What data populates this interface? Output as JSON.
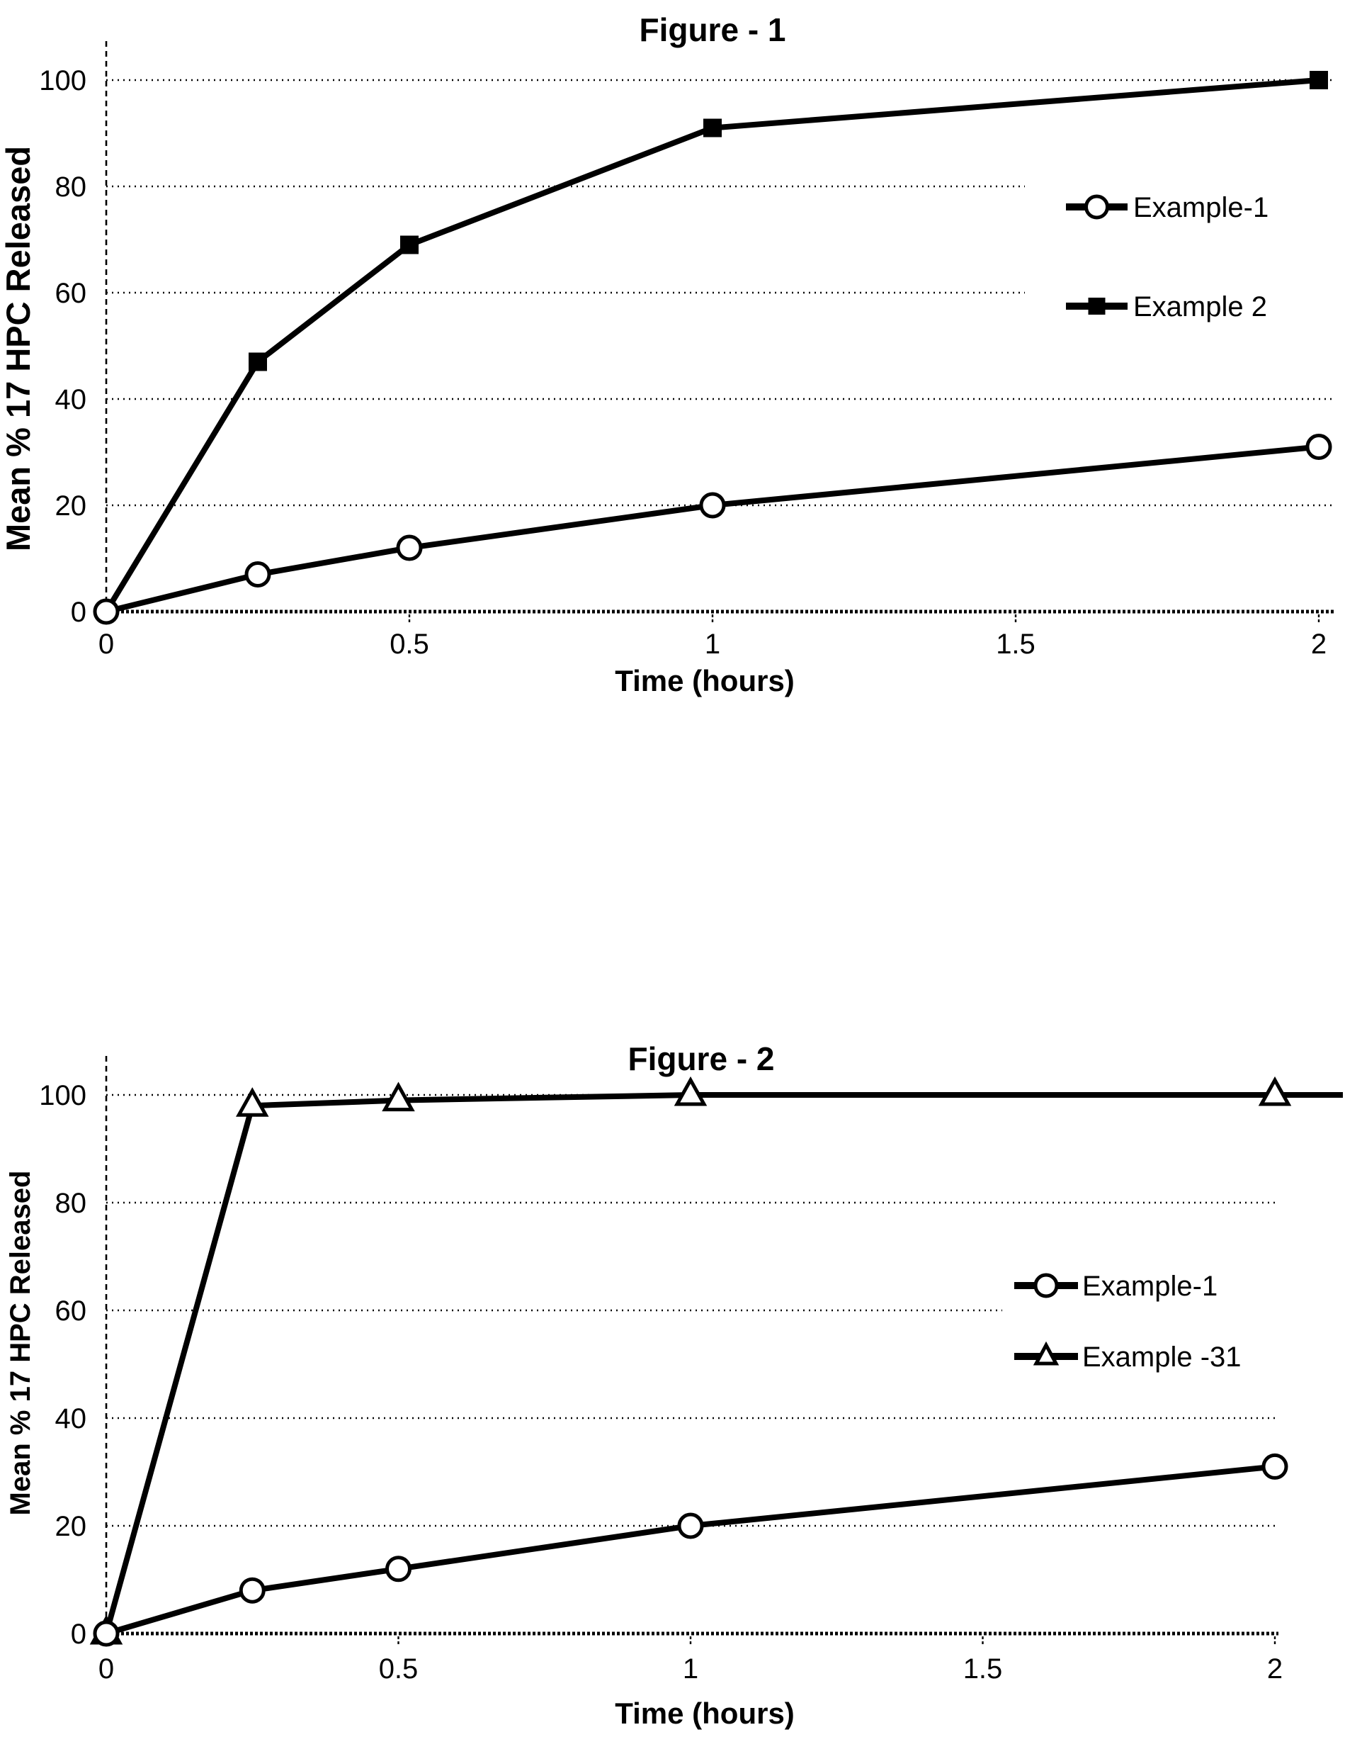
{
  "page": {
    "background": "#ffffff",
    "ink": "#000000"
  },
  "chart_data": [
    {
      "type": "line",
      "title": "Figure - 1",
      "xlabel": "Time (hours)",
      "ylabel": "Mean % 17 HPC Released",
      "x": [
        0,
        0.25,
        0.5,
        1,
        2
      ],
      "xlim": [
        0,
        2
      ],
      "ylim": [
        0,
        100
      ],
      "xticks": [
        0,
        0.5,
        1,
        1.5,
        2
      ],
      "xtick_labels": [
        "0",
        "0.5",
        "1",
        "1.5",
        "2"
      ],
      "yticks": [
        0,
        20,
        40,
        60,
        80,
        100
      ],
      "ytick_labels": [
        "0",
        "20",
        "40",
        "60",
        "80",
        "100"
      ],
      "grid": "horizontal-dotted",
      "legend_position": "inside-right",
      "series": [
        {
          "name": "Example-1",
          "marker": "circle",
          "marker_fill": "open",
          "values": [
            0,
            7,
            12,
            20,
            31
          ]
        },
        {
          "name": "Example 2",
          "marker": "square",
          "marker_fill": "solid",
          "values": [
            0,
            47,
            69,
            91,
            100
          ]
        }
      ]
    },
    {
      "type": "line",
      "title": "Figure - 2",
      "xlabel": "Time (hours)",
      "ylabel": "Mean % 17 HPC Released",
      "x": [
        0,
        0.25,
        0.5,
        1,
        2
      ],
      "xlim": [
        0,
        2
      ],
      "ylim": [
        0,
        100
      ],
      "xticks": [
        0,
        0.5,
        1,
        1.5,
        2
      ],
      "xtick_labels": [
        "0",
        "0.5",
        "1",
        "1.5",
        "2"
      ],
      "yticks": [
        0,
        20,
        40,
        60,
        80,
        100
      ],
      "ytick_labels": [
        "0",
        "20",
        "40",
        "60",
        "80",
        "100"
      ],
      "grid": "horizontal-dotted",
      "legend_position": "inside-right",
      "series": [
        {
          "name": "Example-1",
          "marker": "circle",
          "marker_fill": "open",
          "values": [
            0,
            8,
            12,
            20,
            31
          ]
        },
        {
          "name": "Example -31",
          "marker": "triangle",
          "marker_fill": "open",
          "values": [
            0,
            98,
            99,
            100,
            100
          ]
        }
      ]
    }
  ]
}
